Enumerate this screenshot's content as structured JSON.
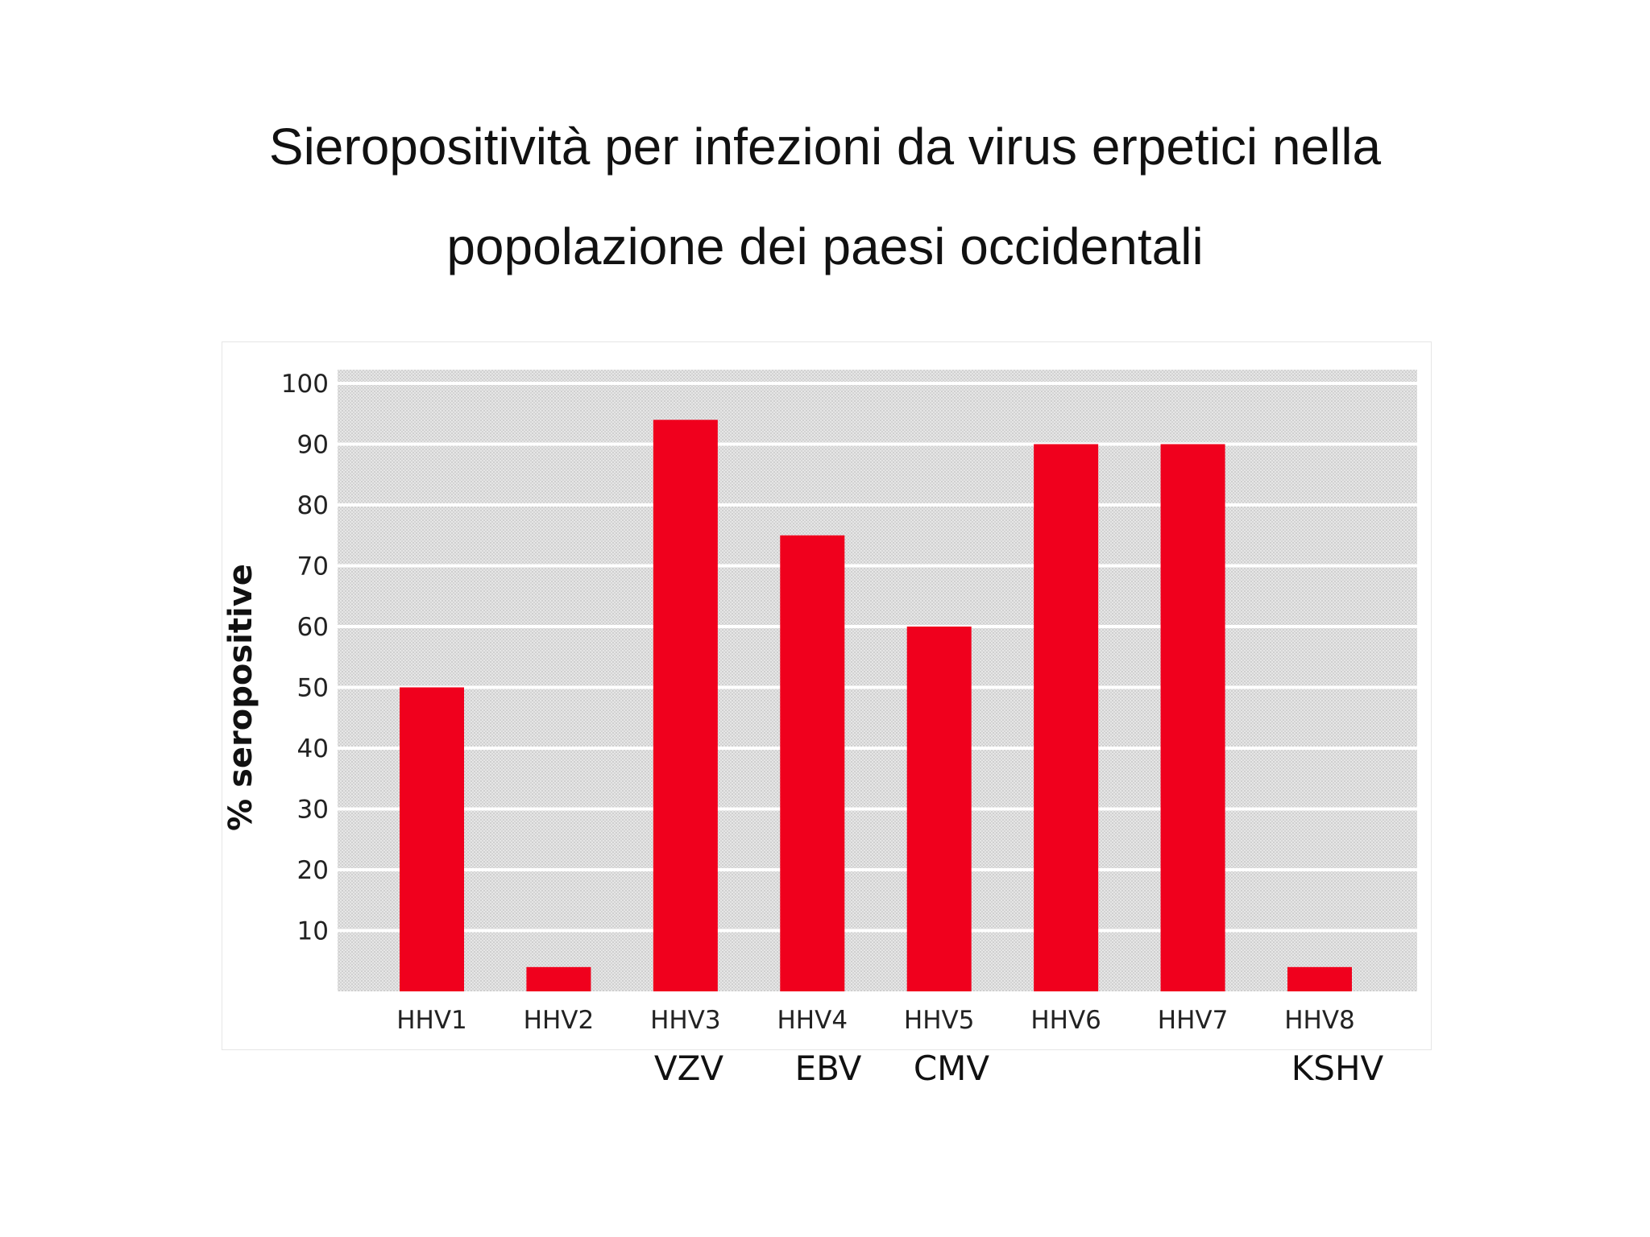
{
  "title": {
    "line1": "Sieropositività per infezioni da virus erpetici nella",
    "line2": "popolazione dei paesi occidentali"
  },
  "colors": {
    "bar": "#f0001d",
    "plot_bg": "#dcdcdc",
    "grid": "#ffffff"
  },
  "chart_data": {
    "type": "bar",
    "title": "",
    "xlabel": "",
    "ylabel": "% seropositive",
    "categories": [
      "HHV1",
      "HHV2",
      "HHV3",
      "HHV4",
      "HHV5",
      "HHV6",
      "HHV7",
      "HHV8"
    ],
    "values": [
      50,
      4,
      94,
      75,
      60,
      90,
      90,
      4
    ],
    "ylim": [
      0,
      100
    ],
    "yticks": [
      10,
      20,
      30,
      40,
      50,
      60,
      70,
      80,
      90,
      100
    ],
    "grid": true,
    "legend": "none"
  },
  "sub_labels": {
    "hhv3": "VZV",
    "hhv4": "EBV",
    "hhv5": "CMV",
    "hhv8": "KSHV"
  }
}
